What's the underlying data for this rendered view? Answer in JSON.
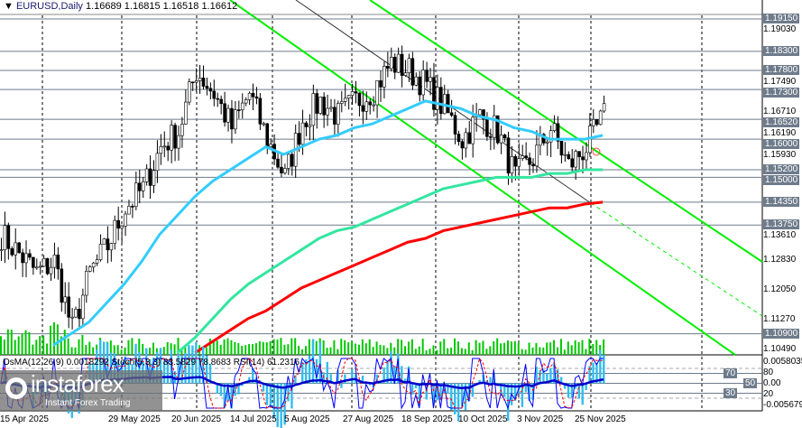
{
  "header": {
    "symbol": "EURUSD,Daily",
    "ohlc": "1.16689 1.16815 1.16518 1.16612"
  },
  "indicator_label": "OsMA(12,26,9) 0.0018292  Stoch(5,3,3) 83.5829 78.8683  RSI(14) 61.2316",
  "price_axis": {
    "min": 1.1049,
    "max": 1.1915,
    "labels": [
      "1.19030",
      "1.17490",
      "1.16710",
      "1.16190",
      "1.15930",
      "1.13610",
      "1.12830",
      "1.12050",
      "1.11270",
      "1.10490"
    ],
    "levels": [
      "1.19150",
      "1.18300",
      "1.17800",
      "1.17300",
      "1.16520",
      "1.16000",
      "1.15200",
      "1.15000",
      "1.14350",
      "1.13750",
      "1.10900"
    ]
  },
  "indicator_axis": {
    "top": "0.0058035",
    "bottom": "-0.005679",
    "levels": [
      "80",
      "70",
      "50",
      "30",
      "20"
    ],
    "zero": "0.00"
  },
  "date_axis": [
    "15 Apr 2025",
    "29 May 2025",
    "20 Jun 2025",
    "14 Jul 2025",
    "5 Aug 2025",
    "27 Aug 2025",
    "18 Sep 2025",
    "10 Oct 2025",
    "3 Nov 2025",
    "25 Nov 2025"
  ],
  "weekly_closes": [
    1.135,
    1.13,
    1.125,
    1.128,
    1.11,
    1.125,
    1.132,
    1.142,
    1.147,
    1.158,
    1.162,
    1.178,
    1.172,
    1.163,
    1.172,
    1.16,
    1.15,
    1.165,
    1.17,
    1.166,
    1.17,
    1.173,
    1.18,
    1.178,
    1.174,
    1.168,
    1.16,
    1.166,
    1.162,
    1.15,
    1.155,
    1.163,
    1.153,
    1.158,
    1.166
  ],
  "ma_fast": [
    null,
    null,
    null,
    1.106,
    1.109,
    1.112,
    1.117,
    1.122,
    1.128,
    1.135,
    1.14,
    1.145,
    1.149,
    1.152,
    1.155,
    1.158,
    1.156,
    1.158,
    1.16,
    1.161,
    1.163,
    1.164,
    1.166,
    1.168,
    1.17,
    1.169,
    1.168,
    1.166,
    1.165,
    1.163,
    1.162,
    1.16,
    1.16,
    1.16,
    1.161
  ],
  "ma_mid": [
    null,
    null,
    null,
    null,
    null,
    null,
    null,
    null,
    null,
    null,
    1.104,
    1.108,
    1.113,
    1.118,
    1.122,
    1.125,
    1.128,
    1.131,
    1.134,
    1.136,
    1.137,
    1.139,
    1.141,
    1.143,
    1.145,
    1.147,
    1.148,
    1.149,
    1.15,
    1.15,
    1.15,
    1.151,
    1.151,
    1.152,
    1.152
  ],
  "ma_slow": [
    null,
    null,
    null,
    null,
    null,
    null,
    null,
    null,
    null,
    null,
    null,
    1.104,
    1.107,
    1.11,
    1.113,
    1.115,
    1.118,
    1.121,
    1.123,
    1.125,
    1.127,
    1.129,
    1.131,
    1.133,
    1.134,
    1.136,
    1.137,
    1.138,
    1.139,
    1.14,
    1.141,
    1.142,
    1.142,
    1.143,
    1.1435
  ],
  "colors": {
    "ma_fast": "#33ccff",
    "ma_mid": "#33e6a0",
    "ma_slow": "#ff0000",
    "trend": "#00ee00",
    "level": "#6e7b8b",
    "volume": "#00c800",
    "osma": "#33bbee",
    "stoch_main": "#0000ff",
    "stoch_signal": "#ff0000",
    "rsi": "#0000cc"
  },
  "logo": {
    "name": "instaforex",
    "tagline": "Instant Forex Trading"
  }
}
